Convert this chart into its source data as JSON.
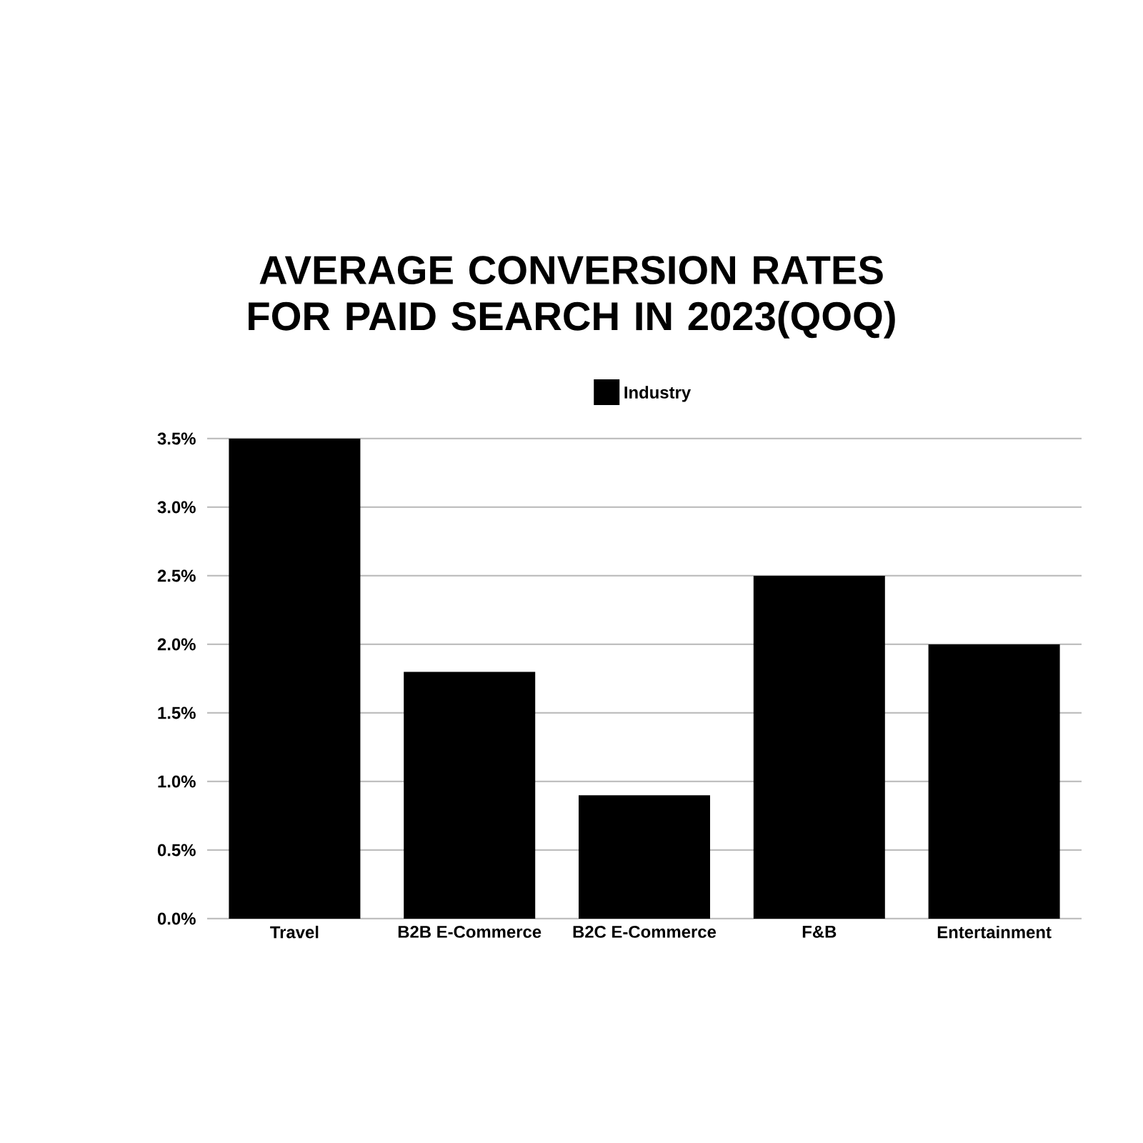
{
  "chart_data": {
    "type": "bar",
    "title": "AVERAGE CONVERSION RATES FOR PAID SEARCH IN 2023(QOQ)",
    "categories": [
      "Travel",
      "B2B E-Commerce",
      "B2C E-Commerce",
      "F&B",
      "Entertainment"
    ],
    "series": [
      {
        "name": "Industry",
        "color": "#000000",
        "values": [
          3.5,
          1.8,
          0.9,
          2.5,
          2.0
        ]
      }
    ],
    "ylim": [
      0,
      3.5
    ],
    "yticks": [
      {
        "value": 0,
        "label": "0.0%"
      },
      {
        "value": 0.5,
        "label": "0.5%"
      },
      {
        "value": 1,
        "label": "1.0%"
      },
      {
        "value": 1.5,
        "label": "1.5%"
      },
      {
        "value": 2,
        "label": "2.0%"
      },
      {
        "value": 2.5,
        "label": "2.5%"
      },
      {
        "value": 3,
        "label": "3.0%"
      },
      {
        "value": 3.5,
        "label": "3.5%"
      }
    ],
    "grid": "y",
    "legend": "top"
  }
}
